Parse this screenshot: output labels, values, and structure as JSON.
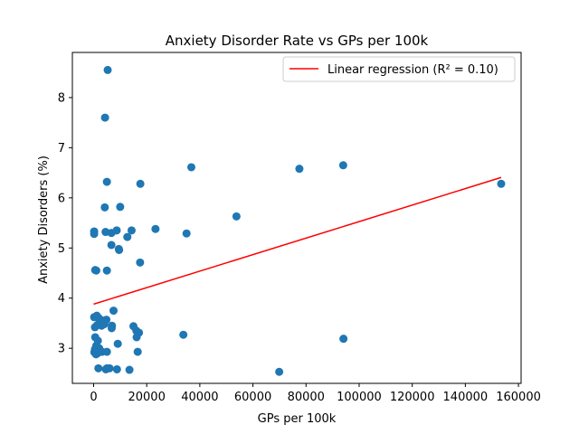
{
  "chart_data": {
    "type": "scatter",
    "title": "Anxiety Disorder Rate vs GPs per 100k",
    "xlabel": "GPs per 100k",
    "ylabel": "Anxiety Disorders (%)",
    "xlim": [
      -8000,
      161000
    ],
    "ylim": [
      2.3,
      8.9
    ],
    "xticks": [
      0,
      20000,
      40000,
      60000,
      80000,
      100000,
      120000,
      140000,
      160000
    ],
    "yticks": [
      3,
      4,
      5,
      6,
      7,
      8
    ],
    "grid": false,
    "legend_position": "top-right",
    "colors": {
      "points": "#1f77b4",
      "regression": "#ff0000"
    },
    "series": [
      {
        "type": "scatter",
        "points": [
          [
            5300,
            8.55
          ],
          [
            4300,
            7.6
          ],
          [
            5000,
            6.32
          ],
          [
            36800,
            6.61
          ],
          [
            77500,
            6.58
          ],
          [
            94000,
            6.65
          ],
          [
            17600,
            6.28
          ],
          [
            153500,
            6.28
          ],
          [
            4200,
            5.81
          ],
          [
            10000,
            5.82
          ],
          [
            53800,
            5.63
          ],
          [
            200,
            5.33
          ],
          [
            200,
            5.28
          ],
          [
            4500,
            5.32
          ],
          [
            6700,
            5.3
          ],
          [
            8700,
            5.35
          ],
          [
            14300,
            5.35
          ],
          [
            23300,
            5.38
          ],
          [
            35000,
            5.29
          ],
          [
            12700,
            5.22
          ],
          [
            6700,
            5.06
          ],
          [
            9500,
            4.98
          ],
          [
            9600,
            4.96
          ],
          [
            17500,
            4.71
          ],
          [
            600,
            4.56
          ],
          [
            1000,
            4.55
          ],
          [
            5000,
            4.55
          ],
          [
            7500,
            3.75
          ],
          [
            200,
            3.62
          ],
          [
            1200,
            3.65
          ],
          [
            2000,
            3.6
          ],
          [
            2600,
            3.55
          ],
          [
            3500,
            3.55
          ],
          [
            4800,
            3.57
          ],
          [
            500,
            3.42
          ],
          [
            1300,
            3.46
          ],
          [
            3000,
            3.45
          ],
          [
            4000,
            3.48
          ],
          [
            6900,
            3.45
          ],
          [
            6800,
            3.4
          ],
          [
            15000,
            3.44
          ],
          [
            16100,
            3.35
          ],
          [
            17100,
            3.31
          ],
          [
            33800,
            3.27
          ],
          [
            16200,
            3.22
          ],
          [
            600,
            3.22
          ],
          [
            1600,
            3.15
          ],
          [
            9100,
            3.09
          ],
          [
            1000,
            3.05
          ],
          [
            2100,
            3.0
          ],
          [
            500,
            2.98
          ],
          [
            300,
            2.92
          ],
          [
            900,
            2.88
          ],
          [
            1500,
            2.9
          ],
          [
            3200,
            2.93
          ],
          [
            5000,
            2.93
          ],
          [
            16600,
            2.93
          ],
          [
            94100,
            3.19
          ],
          [
            1800,
            2.6
          ],
          [
            4600,
            2.58
          ],
          [
            5000,
            2.6
          ],
          [
            6000,
            2.6
          ],
          [
            8800,
            2.58
          ],
          [
            13500,
            2.57
          ],
          [
            69900,
            2.53
          ]
        ]
      },
      {
        "type": "line",
        "name": "Linear regression (R² = 0.10)",
        "slope": 1.646e-05,
        "intercept": 3.88,
        "x_range": [
          0,
          153500
        ]
      }
    ]
  }
}
